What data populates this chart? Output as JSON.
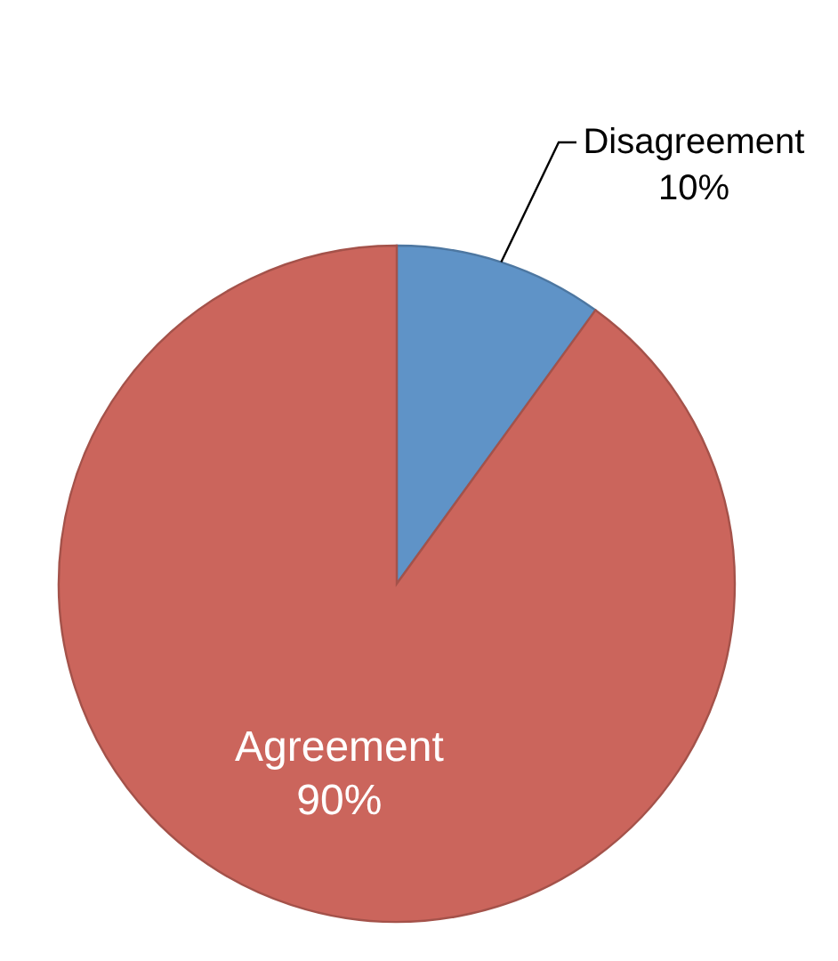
{
  "chart_data": {
    "type": "pie",
    "categories": [
      "Disagreement",
      "Agreement"
    ],
    "values": [
      10,
      90
    ],
    "colors": [
      "#5f93c7",
      "#cb655c"
    ],
    "value_labels": [
      "10%",
      "90%"
    ]
  }
}
